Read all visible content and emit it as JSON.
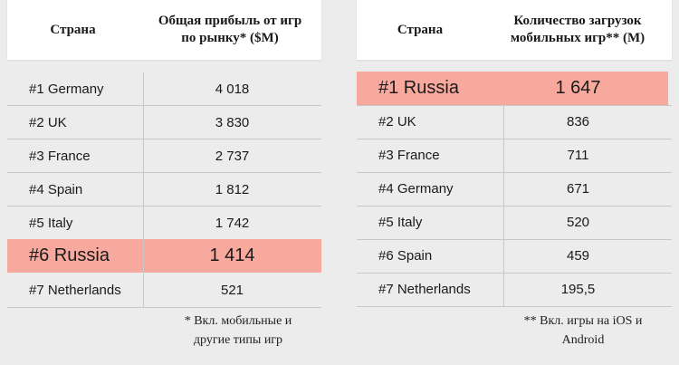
{
  "left_table": {
    "header_country": "Страна",
    "header_value_line1": "Общая прибыль от игр",
    "header_value_line2": "по рынку* ($M)",
    "rows": [
      {
        "country": "#1 Germany",
        "value": "4 018"
      },
      {
        "country": "#2 UK",
        "value": "3 830"
      },
      {
        "country": "#3 France",
        "value": "2 737"
      },
      {
        "country": "#4 Spain",
        "value": "1 812"
      },
      {
        "country": "#5 Italy",
        "value": "1 742"
      },
      {
        "country": "#6 Russia",
        "value": "1 414"
      },
      {
        "country": "#7 Netherlands",
        "value": "521"
      }
    ],
    "footnote_line1": "* Вкл. мобильные и",
    "footnote_line2": "другие типы игр"
  },
  "right_table": {
    "header_country": "Страна",
    "header_value_line1": "Количество загрузок",
    "header_value_line2": "мобильных игр** (M)",
    "rows": [
      {
        "country": "#1 Russia",
        "value": "1 647"
      },
      {
        "country": "#2 UK",
        "value": "836"
      },
      {
        "country": "#3 France",
        "value": "711"
      },
      {
        "country": "#4 Germany",
        "value": "671"
      },
      {
        "country": "#5 Italy",
        "value": "520"
      },
      {
        "country": "#6 Spain",
        "value": "459"
      },
      {
        "country": "#7 Netherlands",
        "value": "195,5"
      }
    ],
    "footnote_line1": "** Вкл. игры на iOS и",
    "footnote_line2": "Android"
  },
  "colors": {
    "highlight": "#f8a99d",
    "background": "#ececec",
    "header_background": "#ffffff"
  }
}
